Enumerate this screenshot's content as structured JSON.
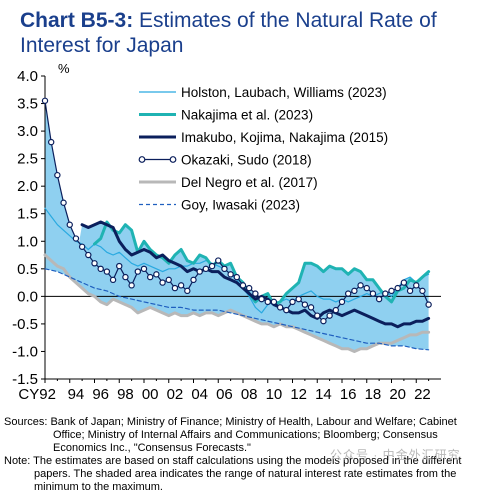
{
  "title": {
    "prefix": "Chart B5-3:",
    "text": "Estimates of the Natural Rate of Interest for Japan"
  },
  "chart_data": {
    "type": "line",
    "ylabel": "%",
    "ylim": [
      -1.5,
      4.0
    ],
    "yticks": [
      "4.0",
      "3.5",
      "3.0",
      "2.5",
      "2.0",
      "1.5",
      "1.0",
      "0.5",
      "0.0",
      "-0.5",
      "-1.0",
      "-1.5"
    ],
    "xlim": [
      1992,
      2024
    ],
    "xticks": [
      "CY 92",
      "94",
      "96",
      "98",
      "00",
      "02",
      "04",
      "06",
      "08",
      "10",
      "12",
      "14",
      "16",
      "18",
      "20",
      "22"
    ],
    "legend_position": "top-right",
    "band": {
      "color": "#8fd0f0",
      "description": "range of natural interest rate estimates"
    },
    "series": [
      {
        "name": "Holston, Laubach, Williams (2023)",
        "color": "#29a9e0",
        "style": "thin",
        "x": [
          1992,
          1992.5,
          1993,
          1993.5,
          1994,
          1994.5,
          1995,
          1995.5,
          1996,
          1996.5,
          1997,
          1997.5,
          1998,
          1998.5,
          1999,
          1999.5,
          2000,
          2000.5,
          2001,
          2001.5,
          2002,
          2002.5,
          2003,
          2003.5,
          2004,
          2004.5,
          2005,
          2005.5,
          2006,
          2006.5,
          2007,
          2007.5,
          2008,
          2008.5,
          2009,
          2009.5,
          2010,
          2010.5,
          2011,
          2011.5,
          2012,
          2012.5,
          2013,
          2013.5,
          2014,
          2014.5,
          2015,
          2015.5,
          2016,
          2016.5,
          2017,
          2017.5,
          2018,
          2018.5,
          2019,
          2019.5,
          2020,
          2020.5,
          2021,
          2021.5,
          2022,
          2022.5,
          2023
        ],
        "y": [
          1.6,
          1.45,
          1.3,
          1.2,
          1.1,
          1.0,
          0.95,
          0.85,
          0.95,
          0.9,
          0.8,
          0.75,
          0.8,
          0.7,
          0.6,
          0.55,
          0.6,
          0.55,
          0.5,
          0.45,
          0.5,
          0.5,
          0.55,
          0.55,
          0.6,
          0.6,
          0.65,
          0.6,
          0.55,
          0.5,
          0.4,
          0.3,
          0.15,
          0.0,
          -0.2,
          -0.3,
          -0.15,
          -0.1,
          -0.1,
          -0.05,
          -0.1,
          0.0,
          0.05,
          0.1,
          0.0,
          -0.05,
          -0.05,
          -0.1,
          -0.05,
          -0.1,
          -0.05,
          0.0,
          0.05,
          0.0,
          0.05,
          0.1,
          0.0,
          0.15,
          0.3,
          0.35,
          0.25,
          0.35,
          0.4
        ]
      },
      {
        "name": "Nakajima et al. (2023)",
        "color": "#1fb3b3",
        "style": "thick",
        "x": [
          1996,
          1996.5,
          1997,
          1997.5,
          1998,
          1998.5,
          1999,
          1999.5,
          2000,
          2000.5,
          2001,
          2001.5,
          2002,
          2002.5,
          2003,
          2003.5,
          2004,
          2004.5,
          2005,
          2005.5,
          2006,
          2006.5,
          2007,
          2007.5,
          2008,
          2008.5,
          2009,
          2009.5,
          2010,
          2010.5,
          2011,
          2011.5,
          2012,
          2012.5,
          2013,
          2013.5,
          2014,
          2014.5,
          2015,
          2015.5,
          2016,
          2016.5,
          2017,
          2017.5,
          2018,
          2018.5,
          2019,
          2019.5,
          2020,
          2020.5,
          2021,
          2021.5,
          2022,
          2022.5,
          2023
        ],
        "y": [
          0.95,
          1.05,
          1.35,
          1.2,
          1.15,
          1.3,
          1.2,
          0.8,
          1.0,
          0.85,
          0.75,
          0.7,
          0.6,
          0.75,
          0.85,
          0.65,
          0.6,
          0.75,
          0.7,
          0.55,
          0.65,
          0.55,
          0.6,
          0.35,
          0.25,
          0.05,
          -0.1,
          0.0,
          0.05,
          -0.15,
          -0.1,
          0.05,
          0.15,
          0.25,
          0.6,
          0.6,
          0.55,
          0.45,
          0.55,
          0.5,
          0.5,
          0.4,
          0.5,
          0.45,
          0.3,
          0.3,
          0.15,
          0.0,
          -0.1,
          0.1,
          0.15,
          0.3,
          0.25,
          0.35,
          0.45
        ]
      },
      {
        "name": "Imakubo, Kojima, Nakajima (2015)",
        "color": "#0b1f5c",
        "style": "thick",
        "x": [
          1995,
          1995.5,
          1996,
          1996.5,
          1997,
          1997.5,
          1998,
          1998.5,
          1999,
          1999.5,
          2000,
          2000.5,
          2001,
          2001.5,
          2002,
          2002.5,
          2003,
          2003.5,
          2004,
          2004.5,
          2005,
          2005.5,
          2006,
          2006.5,
          2007,
          2007.5,
          2008,
          2008.5,
          2009,
          2009.5,
          2010,
          2010.5,
          2011,
          2011.5,
          2012,
          2012.5,
          2013,
          2013.5,
          2014,
          2014.5,
          2015,
          2015.5,
          2016,
          2016.5,
          2017,
          2017.5,
          2018,
          2018.5,
          2019,
          2019.5,
          2020,
          2020.5,
          2021,
          2021.5,
          2022,
          2022.5,
          2023
        ],
        "y": [
          1.3,
          1.25,
          1.3,
          1.35,
          1.3,
          1.25,
          1.0,
          0.85,
          0.75,
          0.8,
          0.85,
          0.8,
          0.7,
          0.75,
          0.65,
          0.6,
          0.55,
          0.45,
          0.5,
          0.45,
          0.5,
          0.45,
          0.45,
          0.35,
          0.3,
          0.25,
          0.15,
          0.05,
          -0.05,
          0.0,
          -0.05,
          -0.15,
          -0.2,
          -0.25,
          -0.3,
          -0.3,
          -0.25,
          -0.35,
          -0.4,
          -0.3,
          -0.25,
          -0.3,
          -0.35,
          -0.3,
          -0.25,
          -0.3,
          -0.35,
          -0.4,
          -0.45,
          -0.5,
          -0.5,
          -0.55,
          -0.5,
          -0.5,
          -0.45,
          -0.45,
          -0.4
        ]
      },
      {
        "name": "Okazaki, Sudo (2018)",
        "color": "#0b1f5c",
        "style": "circle-markers",
        "x": [
          1992,
          1992.5,
          1993,
          1993.5,
          1994,
          1994.5,
          1995,
          1995.5,
          1996,
          1996.5,
          1997,
          1997.5,
          1998,
          1998.5,
          1999,
          1999.5,
          2000,
          2000.5,
          2001,
          2001.5,
          2002,
          2002.5,
          2003,
          2003.5,
          2004,
          2004.5,
          2005,
          2005.5,
          2006,
          2006.5,
          2007,
          2007.5,
          2008,
          2008.5,
          2009,
          2009.5,
          2010,
          2010.5,
          2011,
          2011.5,
          2012,
          2012.5,
          2013,
          2013.5,
          2014,
          2014.5,
          2015,
          2015.5,
          2016,
          2016.5,
          2017,
          2017.5,
          2018,
          2018.5,
          2019,
          2019.5,
          2020,
          2020.5,
          2021,
          2021.5,
          2022,
          2022.5,
          2023
        ],
        "y": [
          3.55,
          2.8,
          2.2,
          1.7,
          1.3,
          1.05,
          0.9,
          0.75,
          0.6,
          0.5,
          0.45,
          0.3,
          0.55,
          0.35,
          0.2,
          0.45,
          0.5,
          0.35,
          0.4,
          0.25,
          0.3,
          0.15,
          0.2,
          0.1,
          0.3,
          0.45,
          0.5,
          0.55,
          0.65,
          0.5,
          0.4,
          0.35,
          0.2,
          0.15,
          0.05,
          -0.05,
          -0.1,
          -0.1,
          -0.2,
          -0.25,
          -0.1,
          -0.05,
          -0.15,
          -0.2,
          -0.35,
          -0.45,
          -0.35,
          -0.25,
          -0.1,
          0.05,
          0.1,
          0.2,
          0.15,
          0.05,
          -0.05,
          0.05,
          0.1,
          0.15,
          0.25,
          0.1,
          0.2,
          0.1,
          -0.15
        ]
      },
      {
        "name": "Del Negro et al. (2017)",
        "color": "#b8b8b8",
        "style": "thick",
        "x": [
          1992,
          1992.5,
          1993,
          1993.5,
          1994,
          1994.5,
          1995,
          1995.5,
          1996,
          1996.5,
          1997,
          1997.5,
          1998,
          1998.5,
          1999,
          1999.5,
          2000,
          2000.5,
          2001,
          2001.5,
          2002,
          2002.5,
          2003,
          2003.5,
          2004,
          2004.5,
          2005,
          2005.5,
          2006,
          2006.5,
          2007,
          2007.5,
          2008,
          2008.5,
          2009,
          2009.5,
          2010,
          2010.5,
          2011,
          2011.5,
          2012,
          2012.5,
          2013,
          2013.5,
          2014,
          2014.5,
          2015,
          2015.5,
          2016,
          2016.5,
          2017,
          2017.5,
          2018,
          2018.5,
          2019,
          2019.5,
          2020,
          2020.5,
          2021,
          2021.5,
          2022,
          2022.5,
          2023
        ],
        "y": [
          0.75,
          0.65,
          0.55,
          0.5,
          0.35,
          0.25,
          0.15,
          0.05,
          0.0,
          -0.1,
          -0.15,
          -0.05,
          -0.1,
          -0.15,
          -0.2,
          -0.3,
          -0.25,
          -0.2,
          -0.25,
          -0.3,
          -0.35,
          -0.3,
          -0.35,
          -0.35,
          -0.3,
          -0.35,
          -0.3,
          -0.3,
          -0.35,
          -0.3,
          -0.25,
          -0.3,
          -0.35,
          -0.4,
          -0.45,
          -0.5,
          -0.5,
          -0.55,
          -0.5,
          -0.55,
          -0.55,
          -0.6,
          -0.65,
          -0.7,
          -0.75,
          -0.8,
          -0.85,
          -0.9,
          -0.95,
          -0.95,
          -1.0,
          -0.95,
          -0.95,
          -0.9,
          -0.85,
          -0.85,
          -0.85,
          -0.8,
          -0.75,
          -0.7,
          -0.7,
          -0.65,
          -0.65
        ]
      },
      {
        "name": "Goy, Iwasaki (2023)",
        "color": "#1f5fbf",
        "style": "dashed",
        "x": [
          1992,
          1993,
          1994,
          1995,
          1996,
          1997,
          1998,
          1999,
          2000,
          2001,
          2002,
          2003,
          2004,
          2005,
          2006,
          2007,
          2008,
          2009,
          2010,
          2011,
          2012,
          2013,
          2014,
          2015,
          2016,
          2017,
          2018,
          2019,
          2020,
          2021,
          2022,
          2023
        ],
        "y": [
          0.5,
          0.45,
          0.35,
          0.25,
          0.15,
          0.1,
          0.0,
          -0.05,
          -0.1,
          -0.15,
          -0.2,
          -0.2,
          -0.25,
          -0.25,
          -0.25,
          -0.3,
          -0.35,
          -0.4,
          -0.45,
          -0.5,
          -0.55,
          -0.6,
          -0.65,
          -0.7,
          -0.75,
          -0.8,
          -0.85,
          -0.85,
          -0.9,
          -0.9,
          -0.95,
          -0.97
        ]
      }
    ]
  },
  "footer": {
    "sources": "Sources: Bank of Japan; Ministry of Finance; Ministry of Health, Labour and Welfare; Cabinet Office; Ministry of Internal Affairs and Communications; Bloomberg; Consensus Economics Inc., \"Consensus Forecasts.\"",
    "note": "Note: The estimates are based on staff calculations using the models proposed in the different papers. The shaded area indicates the range of natural interest rate estimates from the minimum to the maximum."
  },
  "watermark": "公众号 · 中金外汇研究"
}
